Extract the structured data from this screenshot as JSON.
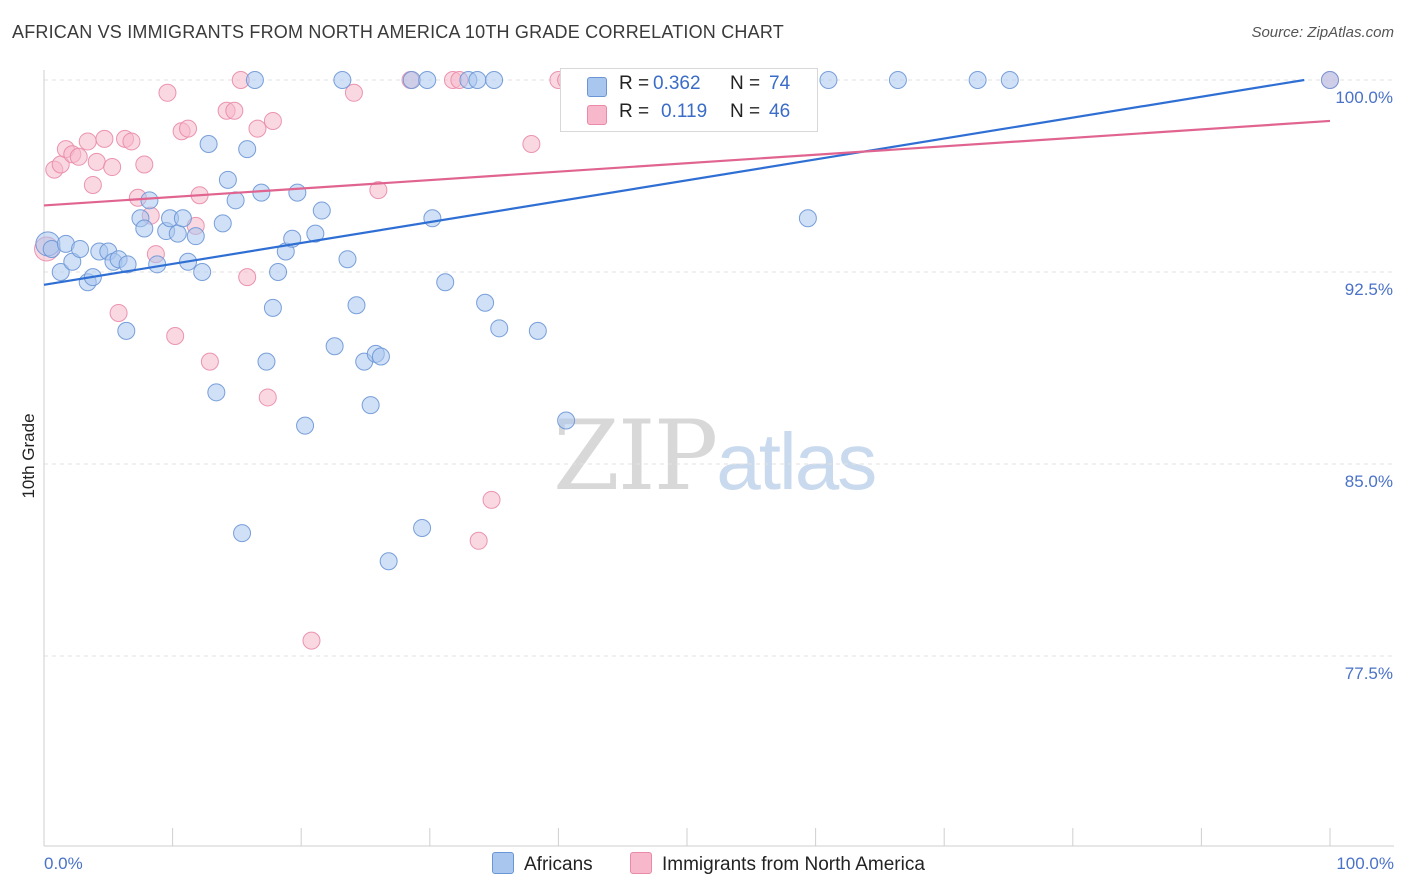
{
  "title": "AFRICAN VS IMMIGRANTS FROM NORTH AMERICA 10TH GRADE CORRELATION CHART",
  "source": "Source: ZipAtlas.com",
  "watermark": {
    "zip": "ZIP",
    "atlas": "atlas"
  },
  "legend_top": {
    "rows": [
      {
        "r_label": "R =",
        "r_value": "0.362",
        "n_label": "N =",
        "n_value": "74"
      },
      {
        "r_label": "R =",
        "r_value": "0.119",
        "n_label": "N =",
        "n_value": "46"
      }
    ]
  },
  "legend_bottom": [
    "Africans",
    "Immigrants from North America"
  ],
  "colors": {
    "blue_fill": "#a9c6ee",
    "blue_stroke": "#6b96d6",
    "blue_line": "#2f6fd4",
    "pink_fill": "#f6b8ca",
    "pink_stroke": "#e98aa8",
    "pink_line": "#e0648f",
    "grid": "#e2e2e2",
    "tick_text": "#4a72c8"
  },
  "chart_data": {
    "type": "scatter",
    "title": "AFRICAN VS IMMIGRANTS FROM NORTH AMERICA 10TH GRADE CORRELATION CHART",
    "xlabel": "",
    "ylabel": "10th Grade",
    "xlim": [
      0,
      100
    ],
    "ylim": [
      70,
      100.7
    ],
    "x_tick_labels": [
      "0.0%",
      "100.0%"
    ],
    "y_ticks": [
      77.5,
      85.0,
      92.5,
      100.0
    ],
    "y_tick_labels": [
      "77.5%",
      "85.0%",
      "92.5%",
      "100.0%"
    ],
    "grid": true,
    "series": [
      {
        "name": "Africans",
        "r": 0.362,
        "n": 74,
        "trend": {
          "x": [
            0,
            98
          ],
          "y": [
            92.0,
            100.0
          ]
        },
        "points": [
          [
            0.3,
            93.6
          ],
          [
            0.6,
            93.4
          ],
          [
            1.3,
            92.5
          ],
          [
            1.7,
            93.6
          ],
          [
            2.2,
            92.9
          ],
          [
            2.8,
            93.4
          ],
          [
            3.4,
            92.1
          ],
          [
            3.8,
            92.3
          ],
          [
            4.3,
            93.3
          ],
          [
            5.0,
            93.3
          ],
          [
            5.4,
            92.9
          ],
          [
            5.8,
            93.0
          ],
          [
            6.5,
            92.8
          ],
          [
            6.4,
            90.2
          ],
          [
            7.5,
            94.6
          ],
          [
            7.8,
            94.2
          ],
          [
            8.2,
            95.3
          ],
          [
            8.8,
            92.8
          ],
          [
            9.5,
            94.1
          ],
          [
            9.8,
            94.6
          ],
          [
            10.4,
            94.0
          ],
          [
            10.8,
            94.6
          ],
          [
            11.2,
            92.9
          ],
          [
            11.8,
            93.9
          ],
          [
            12.3,
            92.5
          ],
          [
            12.8,
            97.5
          ],
          [
            13.4,
            87.8
          ],
          [
            13.9,
            94.4
          ],
          [
            14.3,
            96.1
          ],
          [
            14.9,
            95.3
          ],
          [
            15.4,
            82.3
          ],
          [
            15.8,
            97.3
          ],
          [
            16.4,
            100.0
          ],
          [
            16.9,
            95.6
          ],
          [
            17.3,
            89.0
          ],
          [
            17.8,
            91.1
          ],
          [
            18.2,
            92.5
          ],
          [
            18.8,
            93.3
          ],
          [
            19.3,
            93.8
          ],
          [
            19.7,
            95.6
          ],
          [
            20.3,
            86.5
          ],
          [
            21.1,
            94.0
          ],
          [
            21.6,
            94.9
          ],
          [
            22.6,
            89.6
          ],
          [
            23.2,
            100.0
          ],
          [
            23.6,
            93.0
          ],
          [
            24.3,
            91.2
          ],
          [
            24.9,
            89.0
          ],
          [
            25.4,
            87.3
          ],
          [
            25.8,
            89.3
          ],
          [
            26.2,
            89.2
          ],
          [
            26.8,
            81.2
          ],
          [
            28.6,
            100.0
          ],
          [
            29.4,
            82.5
          ],
          [
            29.8,
            100.0
          ],
          [
            30.2,
            94.6
          ],
          [
            31.2,
            92.1
          ],
          [
            33.0,
            100.0
          ],
          [
            33.7,
            100.0
          ],
          [
            34.3,
            91.3
          ],
          [
            35.0,
            100.0
          ],
          [
            35.4,
            90.3
          ],
          [
            38.4,
            90.2
          ],
          [
            40.6,
            86.7
          ],
          [
            41.6,
            99.2
          ],
          [
            43.0,
            100.0
          ],
          [
            45.0,
            100.0
          ],
          [
            47.0,
            99.2
          ],
          [
            59.4,
            94.6
          ],
          [
            61.0,
            100.0
          ],
          [
            66.4,
            100.0
          ],
          [
            72.6,
            100.0
          ],
          [
            75.1,
            100.0
          ],
          [
            100.0,
            100.0
          ]
        ]
      },
      {
        "name": "Immigrants from North America",
        "r": 0.119,
        "n": 46,
        "trend": {
          "x": [
            0,
            100
          ],
          "y": [
            95.1,
            98.4
          ]
        },
        "points": [
          [
            0.2,
            93.4
          ],
          [
            0.8,
            96.5
          ],
          [
            1.3,
            96.7
          ],
          [
            1.7,
            97.3
          ],
          [
            2.2,
            97.1
          ],
          [
            2.7,
            97.0
          ],
          [
            3.4,
            97.6
          ],
          [
            3.8,
            95.9
          ],
          [
            4.1,
            96.8
          ],
          [
            4.7,
            97.7
          ],
          [
            5.3,
            96.6
          ],
          [
            5.8,
            90.9
          ],
          [
            6.3,
            97.7
          ],
          [
            6.8,
            97.6
          ],
          [
            7.3,
            95.4
          ],
          [
            7.8,
            96.7
          ],
          [
            8.3,
            94.7
          ],
          [
            8.7,
            93.2
          ],
          [
            9.6,
            99.5
          ],
          [
            10.2,
            90.0
          ],
          [
            10.7,
            98.0
          ],
          [
            11.2,
            98.1
          ],
          [
            11.8,
            94.3
          ],
          [
            12.1,
            95.5
          ],
          [
            12.9,
            89.0
          ],
          [
            14.2,
            98.8
          ],
          [
            14.8,
            98.8
          ],
          [
            15.3,
            100.0
          ],
          [
            15.8,
            92.3
          ],
          [
            16.6,
            98.1
          ],
          [
            17.4,
            87.6
          ],
          [
            17.8,
            98.4
          ],
          [
            20.8,
            78.1
          ],
          [
            24.1,
            99.5
          ],
          [
            26.0,
            95.7
          ],
          [
            28.5,
            100.0
          ],
          [
            31.8,
            100.0
          ],
          [
            32.3,
            100.0
          ],
          [
            33.8,
            82.0
          ],
          [
            34.8,
            83.6
          ],
          [
            37.9,
            97.5
          ],
          [
            40.0,
            100.0
          ],
          [
            40.6,
            100.0
          ],
          [
            43.0,
            100.0
          ],
          [
            45.0,
            98.8
          ],
          [
            100.0,
            100.0
          ]
        ]
      }
    ]
  }
}
